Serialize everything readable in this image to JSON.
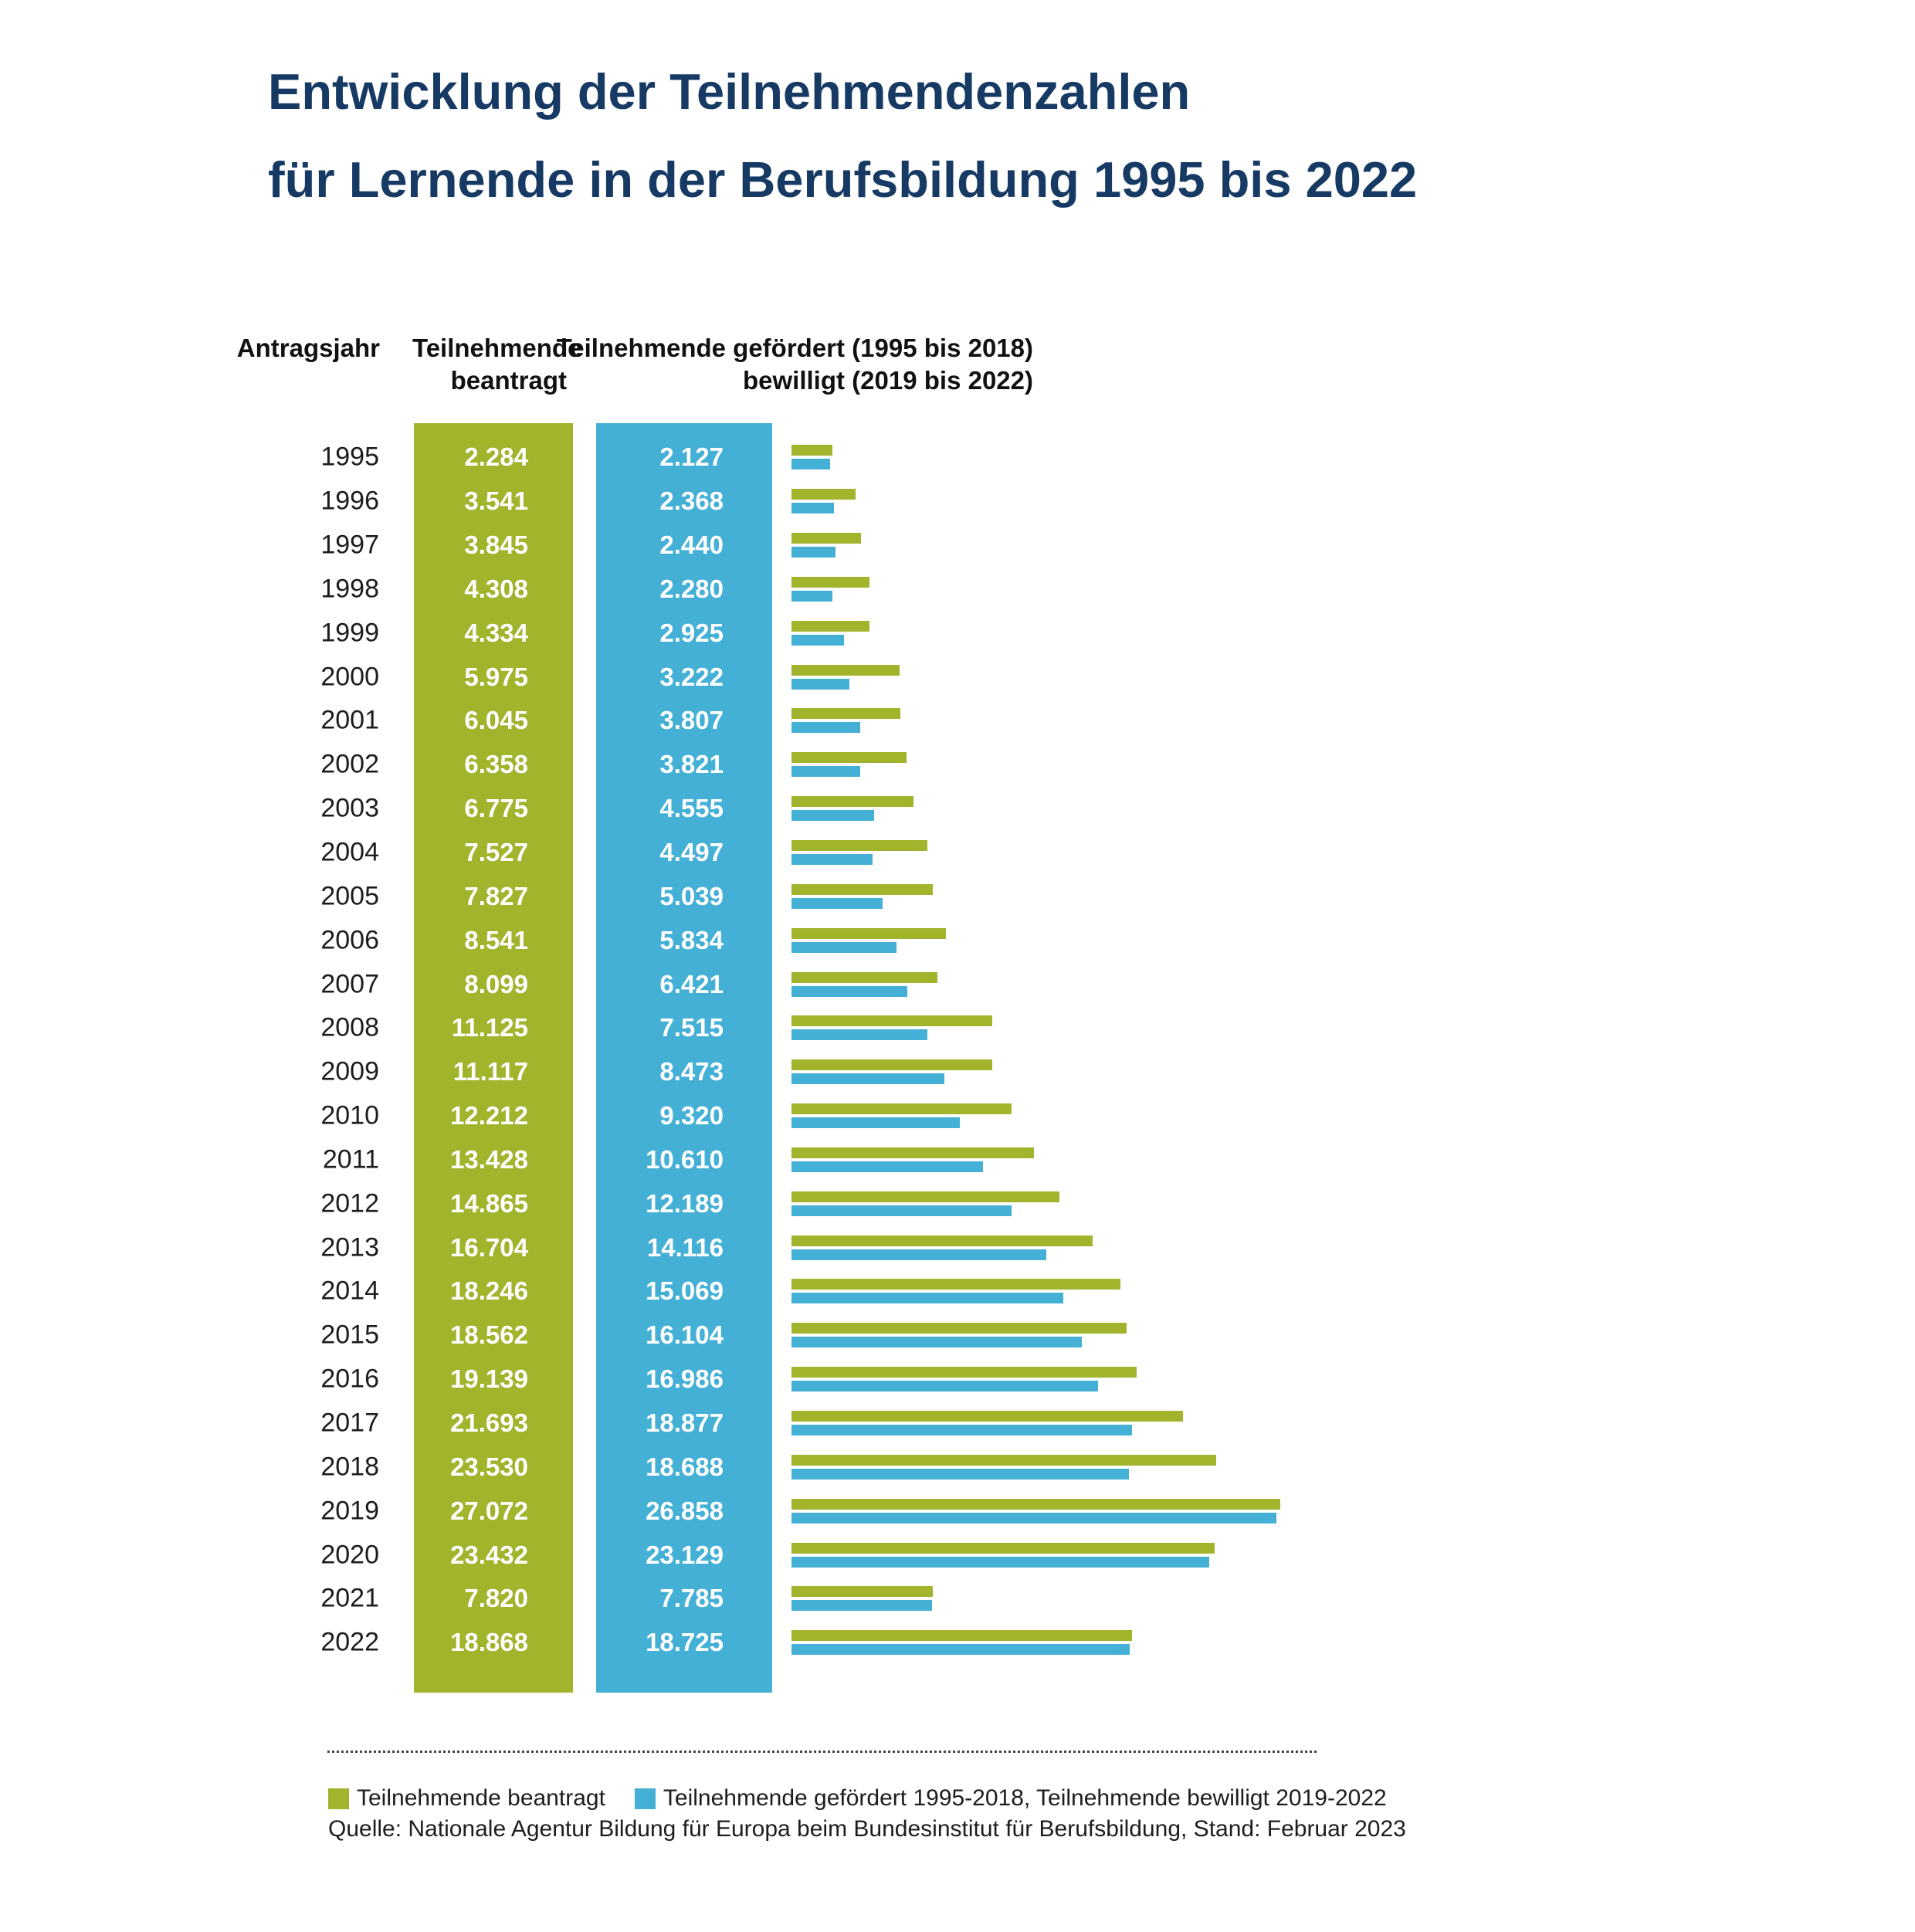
{
  "title": {
    "line1": "Entwicklung der Teilnehmendenzahlen",
    "line2": "für Lernende in der Berufsbildung 1995 bis 2022"
  },
  "table_headers": {
    "year": "Antragsjahr",
    "green_line1": "Teilnehmende",
    "green_line2": "beantragt",
    "blue_line1": "Teilnehmende gefördert (1995 bis 2018)",
    "blue_line2": "bewilligt (2019 bis 2022)"
  },
  "chart_data": {
    "type": "bar",
    "orientation": "horizontal",
    "title": "Entwicklung der Teilnehmendenzahlen für Lernende in der Berufsbildung 1995 bis 2022",
    "categories": [
      "1995",
      "1996",
      "1997",
      "1998",
      "1999",
      "2000",
      "2001",
      "2002",
      "2003",
      "2004",
      "2005",
      "2006",
      "2007",
      "2008",
      "2009",
      "2010",
      "2011",
      "2012",
      "2013",
      "2014",
      "2015",
      "2016",
      "2017",
      "2018",
      "2019",
      "2020",
      "2021",
      "2022"
    ],
    "series": [
      {
        "name": "Teilnehmende beantragt",
        "color": "#a2b32c",
        "values": [
          2284,
          3541,
          3845,
          4308,
          4334,
          5975,
          6045,
          6358,
          6775,
          7527,
          7827,
          8541,
          8099,
          11125,
          11117,
          12212,
          13428,
          14865,
          16704,
          18246,
          18562,
          19139,
          21693,
          23530,
          27072,
          23432,
          7820,
          18868
        ]
      },
      {
        "name": "Teilnehmende gefördert 1995-2018, Teilnehmende bewilligt 2019-2022",
        "color": "#45b0d6",
        "values": [
          2127,
          2368,
          2440,
          2280,
          2925,
          3222,
          3807,
          3821,
          4555,
          4497,
          5039,
          5834,
          6421,
          7515,
          8473,
          9320,
          10610,
          12189,
          14116,
          15069,
          16104,
          16986,
          18877,
          18688,
          26858,
          23129,
          7785,
          18725
        ]
      }
    ],
    "xlim": [
      0,
      28000
    ],
    "grid": false,
    "legend_position": "bottom",
    "number_format": "german thousands separator (dot)"
  },
  "legend": {
    "items": [
      {
        "label": "Teilnehmende beantragt",
        "color": "#a2b32c"
      },
      {
        "label": "Teilnehmende gefördert 1995-2018, Teilnehmende bewilligt 2019-2022",
        "color": "#45b0d6"
      }
    ]
  },
  "source": "Quelle: Nationale Agentur Bildung für Europa beim Bundesinstitut für Berufsbildung, Stand: Februar 2023",
  "colors": {
    "title": "#163a64",
    "green": "#a2b32c",
    "blue": "#45b0d6",
    "text": "#1d1d1b"
  }
}
